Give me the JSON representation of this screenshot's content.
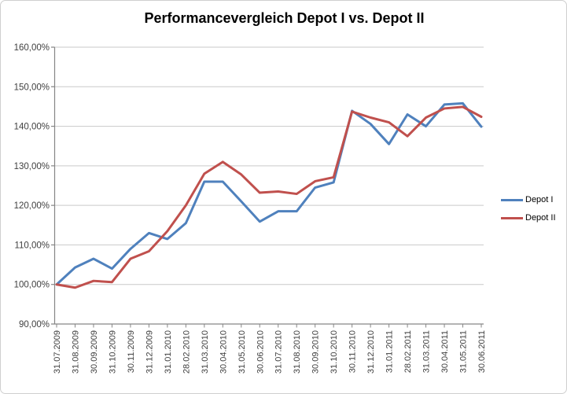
{
  "chart_data": {
    "type": "line",
    "title": "Performancevergleich Depot I vs. Depot II",
    "categories": [
      "31.07.2009",
      "31.08.2009",
      "30.09.2009",
      "31.10.2009",
      "30.11.2009",
      "31.12.2009",
      "31.01.2010",
      "28.02.2010",
      "31.03.2010",
      "30.04.2010",
      "31.05.2010",
      "30.06.2010",
      "31.07.2010",
      "31.08.2010",
      "30.09.2010",
      "31.10.2010",
      "30.11.2010",
      "31.12.2010",
      "31.01.2011",
      "28.02.2011",
      "31.03.2011",
      "30.04.2011",
      "31.05.2011",
      "30.06.2011"
    ],
    "series": [
      {
        "name": "Depot I",
        "color": "#4F81BD",
        "values": [
          100.0,
          104.3,
          106.5,
          104.0,
          109.0,
          113.0,
          111.5,
          115.5,
          126.0,
          126.0,
          121.0,
          115.9,
          118.5,
          118.5,
          124.5,
          125.8,
          143.9,
          140.6,
          135.5,
          143.0,
          140.0,
          145.5,
          145.8,
          139.9
        ]
      },
      {
        "name": "Depot II",
        "color": "#C0504D",
        "values": [
          100.0,
          99.2,
          100.9,
          100.6,
          106.5,
          108.4,
          113.5,
          120.0,
          128.0,
          131.0,
          127.8,
          123.2,
          123.5,
          122.9,
          126.1,
          127.1,
          143.7,
          142.2,
          141.0,
          137.5,
          142.2,
          144.5,
          144.9,
          142.4
        ]
      }
    ],
    "y_axis": {
      "min": 90,
      "max": 160,
      "step": 10,
      "tick_labels": [
        "90,00%",
        "100,00%",
        "110,00%",
        "120,00%",
        "130,00%",
        "140,00%",
        "150,00%",
        "160,00%"
      ]
    },
    "x_axis": {
      "label_rotation": -90
    },
    "grid": true,
    "legend_position": "right-middle",
    "colors": {
      "gridline": "#c9c9c9",
      "axis": "#868686",
      "tick_text": "#3f3f3f",
      "background": "#ffffff"
    }
  }
}
